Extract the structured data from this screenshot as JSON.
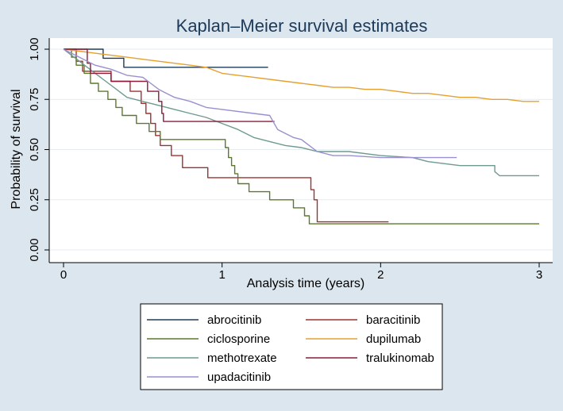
{
  "chart_data": {
    "type": "line",
    "title": "Kaplan–Meier survival estimates",
    "xlabel": "Analysis time (years)",
    "ylabel": "Probability of survival",
    "xlim": [
      0,
      3
    ],
    "ylim": [
      0,
      1
    ],
    "xticks": [
      0,
      1,
      2,
      3
    ],
    "yticks": [
      0,
      0.25,
      0.5,
      0.75,
      1
    ],
    "xtick_labels": [
      "0",
      "1",
      "2",
      "3"
    ],
    "ytick_labels": [
      "0.00",
      "0.25",
      "0.50",
      "0.75",
      "1.00"
    ],
    "grid": true,
    "legend_position": "bottom",
    "series": [
      {
        "name": "abrocitinib",
        "color": "#1f3b57",
        "points": [
          [
            0,
            1
          ],
          [
            0.25,
            1
          ],
          [
            0.25,
            0.955
          ],
          [
            0.38,
            0.955
          ],
          [
            0.38,
            0.91
          ],
          [
            1.29,
            0.91
          ]
        ]
      },
      {
        "name": "baracitinib",
        "color": "#a03030",
        "points": [
          [
            0,
            1
          ],
          [
            0.08,
            1
          ],
          [
            0.08,
            0.94
          ],
          [
            0.12,
            0.94
          ],
          [
            0.12,
            0.89
          ],
          [
            0.3,
            0.89
          ],
          [
            0.3,
            0.84
          ],
          [
            0.42,
            0.84
          ],
          [
            0.42,
            0.79
          ],
          [
            0.49,
            0.79
          ],
          [
            0.49,
            0.73
          ],
          [
            0.52,
            0.73
          ],
          [
            0.52,
            0.68
          ],
          [
            0.55,
            0.68
          ],
          [
            0.55,
            0.63
          ],
          [
            0.58,
            0.63
          ],
          [
            0.58,
            0.57
          ],
          [
            0.61,
            0.57
          ],
          [
            0.61,
            0.52
          ],
          [
            0.68,
            0.52
          ],
          [
            0.68,
            0.47
          ],
          [
            0.75,
            0.47
          ],
          [
            0.75,
            0.41
          ],
          [
            0.91,
            0.41
          ],
          [
            0.91,
            0.36
          ],
          [
            1.56,
            0.36
          ],
          [
            1.56,
            0.3
          ],
          [
            1.58,
            0.3
          ],
          [
            1.58,
            0.25
          ],
          [
            1.6,
            0.25
          ],
          [
            1.6,
            0.14
          ],
          [
            2.05,
            0.14
          ]
        ]
      },
      {
        "name": "ciclosporine",
        "color": "#5b7a2a",
        "points": [
          [
            0,
            1
          ],
          [
            0.05,
            1
          ],
          [
            0.05,
            0.96
          ],
          [
            0.08,
            0.96
          ],
          [
            0.08,
            0.92
          ],
          [
            0.13,
            0.92
          ],
          [
            0.13,
            0.88
          ],
          [
            0.17,
            0.88
          ],
          [
            0.17,
            0.83
          ],
          [
            0.22,
            0.83
          ],
          [
            0.22,
            0.79
          ],
          [
            0.28,
            0.79
          ],
          [
            0.28,
            0.75
          ],
          [
            0.33,
            0.75
          ],
          [
            0.33,
            0.71
          ],
          [
            0.37,
            0.71
          ],
          [
            0.37,
            0.67
          ],
          [
            0.46,
            0.67
          ],
          [
            0.46,
            0.63
          ],
          [
            0.54,
            0.63
          ],
          [
            0.54,
            0.59
          ],
          [
            0.61,
            0.59
          ],
          [
            0.61,
            0.55
          ],
          [
            1.02,
            0.55
          ],
          [
            1.02,
            0.51
          ],
          [
            1.04,
            0.51
          ],
          [
            1.04,
            0.46
          ],
          [
            1.06,
            0.46
          ],
          [
            1.06,
            0.42
          ],
          [
            1.08,
            0.42
          ],
          [
            1.08,
            0.38
          ],
          [
            1.1,
            0.38
          ],
          [
            1.1,
            0.33
          ],
          [
            1.17,
            0.33
          ],
          [
            1.17,
            0.29
          ],
          [
            1.3,
            0.29
          ],
          [
            1.3,
            0.25
          ],
          [
            1.45,
            0.25
          ],
          [
            1.45,
            0.21
          ],
          [
            1.52,
            0.21
          ],
          [
            1.52,
            0.17
          ],
          [
            1.55,
            0.17
          ],
          [
            1.55,
            0.13
          ],
          [
            3,
            0.13
          ]
        ]
      },
      {
        "name": "dupilumab",
        "color": "#e5a030",
        "points": [
          [
            0,
            1
          ],
          [
            0.1,
            0.99
          ],
          [
            0.2,
            0.98
          ],
          [
            0.3,
            0.97
          ],
          [
            0.4,
            0.96
          ],
          [
            0.5,
            0.95
          ],
          [
            0.6,
            0.94
          ],
          [
            0.7,
            0.93
          ],
          [
            0.8,
            0.92
          ],
          [
            0.9,
            0.91
          ],
          [
            1,
            0.88
          ],
          [
            1.1,
            0.87
          ],
          [
            1.2,
            0.86
          ],
          [
            1.3,
            0.85
          ],
          [
            1.4,
            0.84
          ],
          [
            1.5,
            0.83
          ],
          [
            1.6,
            0.82
          ],
          [
            1.7,
            0.81
          ],
          [
            1.8,
            0.81
          ],
          [
            1.9,
            0.8
          ],
          [
            2,
            0.8
          ],
          [
            2.1,
            0.79
          ],
          [
            2.2,
            0.78
          ],
          [
            2.3,
            0.78
          ],
          [
            2.4,
            0.77
          ],
          [
            2.5,
            0.76
          ],
          [
            2.6,
            0.76
          ],
          [
            2.7,
            0.75
          ],
          [
            2.8,
            0.75
          ],
          [
            2.9,
            0.74
          ],
          [
            3,
            0.74
          ]
        ]
      },
      {
        "name": "methotrexate",
        "color": "#6e9a90",
        "points": [
          [
            0,
            1
          ],
          [
            0.05,
            0.97
          ],
          [
            0.1,
            0.94
          ],
          [
            0.15,
            0.91
          ],
          [
            0.2,
            0.88
          ],
          [
            0.25,
            0.85
          ],
          [
            0.3,
            0.82
          ],
          [
            0.35,
            0.79
          ],
          [
            0.4,
            0.76
          ],
          [
            0.5,
            0.74
          ],
          [
            0.6,
            0.72
          ],
          [
            0.7,
            0.7
          ],
          [
            0.8,
            0.68
          ],
          [
            0.9,
            0.66
          ],
          [
            1,
            0.63
          ],
          [
            1.1,
            0.6
          ],
          [
            1.2,
            0.56
          ],
          [
            1.3,
            0.54
          ],
          [
            1.4,
            0.52
          ],
          [
            1.5,
            0.51
          ],
          [
            1.6,
            0.49
          ],
          [
            1.8,
            0.49
          ],
          [
            2,
            0.47
          ],
          [
            2.2,
            0.46
          ],
          [
            2.3,
            0.44
          ],
          [
            2.5,
            0.42
          ],
          [
            2.72,
            0.42
          ],
          [
            2.72,
            0.39
          ],
          [
            2.75,
            0.37
          ],
          [
            3,
            0.37
          ]
        ]
      },
      {
        "name": "tralukinomab",
        "color": "#8c1c3a",
        "points": [
          [
            0,
            1
          ],
          [
            0.1,
            1
          ],
          [
            0.15,
            1
          ],
          [
            0.15,
            0.93
          ],
          [
            0.17,
            0.93
          ],
          [
            0.17,
            0.88
          ],
          [
            0.3,
            0.88
          ],
          [
            0.3,
            0.84
          ],
          [
            0.53,
            0.84
          ],
          [
            0.53,
            0.79
          ],
          [
            0.6,
            0.79
          ],
          [
            0.6,
            0.74
          ],
          [
            0.62,
            0.74
          ],
          [
            0.62,
            0.68
          ],
          [
            0.63,
            0.68
          ],
          [
            0.63,
            0.64
          ],
          [
            1.33,
            0.64
          ]
        ]
      },
      {
        "name": "upadacitinib",
        "color": "#9a8fcf",
        "points": [
          [
            0,
            1
          ],
          [
            0.05,
            0.98
          ],
          [
            0.1,
            0.96
          ],
          [
            0.15,
            0.94
          ],
          [
            0.2,
            0.92
          ],
          [
            0.3,
            0.9
          ],
          [
            0.4,
            0.87
          ],
          [
            0.5,
            0.86
          ],
          [
            0.55,
            0.83
          ],
          [
            0.6,
            0.8
          ],
          [
            0.65,
            0.78
          ],
          [
            0.7,
            0.76
          ],
          [
            0.8,
            0.74
          ],
          [
            0.9,
            0.71
          ],
          [
            1,
            0.7
          ],
          [
            1.2,
            0.68
          ],
          [
            1.3,
            0.67
          ],
          [
            1.35,
            0.6
          ],
          [
            1.4,
            0.58
          ],
          [
            1.45,
            0.56
          ],
          [
            1.5,
            0.55
          ],
          [
            1.55,
            0.52
          ],
          [
            1.6,
            0.49
          ],
          [
            1.7,
            0.47
          ],
          [
            1.8,
            0.47
          ],
          [
            2,
            0.46
          ],
          [
            2.2,
            0.46
          ],
          [
            2.48,
            0.46
          ]
        ]
      }
    ]
  }
}
